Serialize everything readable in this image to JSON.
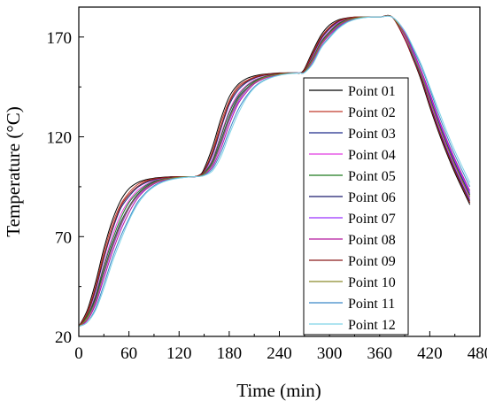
{
  "chart_data": {
    "type": "line",
    "title": "",
    "xlabel": "Time (min)",
    "ylabel": "Temperature (°C)",
    "xlim": [
      0,
      480
    ],
    "ylim": [
      20,
      185
    ],
    "xticks": [
      0,
      60,
      120,
      180,
      240,
      300,
      360,
      420,
      480
    ],
    "yticks": [
      20,
      70,
      120,
      170
    ],
    "grid": false,
    "legend": "inside-right",
    "series": [
      {
        "name": "Point 01",
        "color": "#000000",
        "x": [
          0,
          10,
          20,
          30,
          40,
          50,
          60,
          70,
          80,
          90,
          100,
          110,
          120,
          130,
          138,
          145,
          150,
          160,
          170,
          180,
          190,
          200,
          210,
          220,
          230,
          240,
          250,
          260,
          265,
          270,
          280,
          290,
          300,
          310,
          320,
          330,
          340,
          350,
          360,
          375,
          390,
          400,
          410,
          420,
          430,
          440,
          450,
          460,
          468
        ],
        "y": [
          25,
          33,
          47,
          64,
          78,
          88,
          94,
          97,
          98.5,
          99.3,
          99.7,
          100,
          100,
          100,
          100,
          101,
          104,
          115,
          129,
          140,
          146,
          149,
          150.5,
          151.3,
          151.7,
          152,
          152,
          152,
          152,
          154,
          163,
          171,
          176,
          178.5,
          179.5,
          180,
          180,
          180,
          180,
          180,
          169,
          159,
          148,
          135,
          123,
          112,
          102,
          93,
          86
        ]
      },
      {
        "name": "Point 02",
        "color": "#c0392b",
        "x": [
          0,
          10,
          20,
          30,
          40,
          50,
          60,
          70,
          80,
          90,
          100,
          110,
          120,
          130,
          138,
          145,
          150,
          160,
          170,
          180,
          190,
          200,
          210,
          220,
          230,
          240,
          250,
          260,
          265,
          270,
          280,
          290,
          300,
          310,
          320,
          330,
          340,
          350,
          360,
          375,
          390,
          400,
          410,
          420,
          430,
          440,
          450,
          460,
          468
        ],
        "y": [
          25,
          32,
          45,
          62,
          76,
          86,
          92,
          96,
          98,
          99,
          99.5,
          99.8,
          100,
          100,
          100,
          101,
          103,
          113,
          127,
          138,
          145,
          148,
          150,
          151,
          151.5,
          151.8,
          152,
          152,
          152,
          153.5,
          162,
          170,
          175,
          178,
          179.3,
          180,
          180,
          180,
          180,
          180,
          169,
          159,
          149,
          136,
          124,
          113,
          103,
          94,
          87
        ]
      },
      {
        "name": "Point 03",
        "color": "#1f2a8a",
        "x": [
          0,
          10,
          20,
          30,
          40,
          50,
          60,
          70,
          80,
          90,
          100,
          110,
          120,
          130,
          138,
          145,
          150,
          160,
          170,
          180,
          190,
          200,
          210,
          220,
          230,
          240,
          250,
          260,
          265,
          270,
          280,
          290,
          300,
          310,
          320,
          330,
          340,
          350,
          360,
          375,
          390,
          400,
          410,
          420,
          430,
          440,
          450,
          460,
          468
        ],
        "y": [
          25,
          31,
          43,
          59,
          73,
          84,
          90,
          94.5,
          97,
          98.5,
          99.3,
          99.7,
          100,
          100,
          100,
          100.8,
          102.5,
          111,
          124,
          136,
          143,
          147,
          149.3,
          150.6,
          151.3,
          151.7,
          152,
          152,
          152,
          153,
          161,
          169,
          174,
          177.5,
          179,
          179.7,
          180,
          180,
          180,
          180,
          170,
          160,
          150,
          137,
          125,
          114,
          104,
          95,
          88
        ]
      },
      {
        "name": "Point 04",
        "color": "#e23ae2",
        "x": [
          0,
          10,
          20,
          30,
          40,
          50,
          60,
          70,
          80,
          90,
          100,
          110,
          120,
          130,
          138,
          145,
          150,
          160,
          170,
          180,
          190,
          200,
          210,
          220,
          230,
          240,
          250,
          260,
          265,
          270,
          280,
          290,
          300,
          310,
          320,
          330,
          340,
          350,
          360,
          375,
          390,
          400,
          410,
          420,
          430,
          440,
          450,
          460,
          468
        ],
        "y": [
          25,
          30,
          41,
          56,
          70,
          81,
          88,
          93,
          96,
          98,
          99,
          99.5,
          99.8,
          100,
          100,
          100.6,
          102,
          109,
          121,
          133,
          141,
          145.5,
          148.5,
          150,
          151,
          151.6,
          151.9,
          152,
          152,
          152.7,
          160,
          168,
          173,
          177,
          178.7,
          179.6,
          180,
          180,
          180,
          180,
          170,
          161,
          151,
          138,
          126,
          115,
          105,
          96,
          89
        ]
      },
      {
        "name": "Point 05",
        "color": "#1e7b1e",
        "x": [
          0,
          10,
          20,
          30,
          40,
          50,
          60,
          70,
          80,
          90,
          100,
          110,
          120,
          130,
          138,
          145,
          150,
          160,
          170,
          180,
          190,
          200,
          210,
          220,
          230,
          240,
          250,
          260,
          265,
          270,
          280,
          290,
          300,
          310,
          320,
          330,
          340,
          350,
          360,
          375,
          390,
          400,
          410,
          420,
          430,
          440,
          450,
          460,
          468
        ],
        "y": [
          25,
          30,
          40,
          55,
          68,
          79,
          87,
          92,
          95.5,
          97.7,
          98.8,
          99.4,
          99.8,
          100,
          100,
          100.5,
          101.8,
          108,
          120,
          132,
          140,
          145,
          148,
          149.8,
          150.9,
          151.5,
          151.9,
          152,
          152,
          152.6,
          159.5,
          167.5,
          172.5,
          176.5,
          178.5,
          179.5,
          180,
          180,
          180,
          180,
          171,
          161,
          151,
          139,
          127,
          116,
          106,
          97,
          90
        ]
      },
      {
        "name": "Point 06",
        "color": "#1a1a6e",
        "x": [
          0,
          10,
          20,
          30,
          40,
          50,
          60,
          70,
          80,
          90,
          100,
          110,
          120,
          130,
          138,
          145,
          150,
          160,
          170,
          180,
          190,
          200,
          210,
          220,
          230,
          240,
          250,
          260,
          265,
          270,
          280,
          290,
          300,
          310,
          320,
          330,
          340,
          350,
          360,
          375,
          390,
          400,
          410,
          420,
          430,
          440,
          450,
          460,
          468
        ],
        "y": [
          25,
          29,
          39,
          53,
          66,
          77,
          85,
          91,
          94.8,
          97.3,
          98.6,
          99.3,
          99.7,
          100,
          100,
          100.4,
          101.5,
          107,
          118,
          130,
          139,
          144,
          147.5,
          149.5,
          150.7,
          151.4,
          151.8,
          152,
          152,
          152.5,
          159,
          167,
          172,
          176,
          178.3,
          179.4,
          180,
          180,
          180,
          180,
          171,
          162,
          152,
          140,
          128,
          117,
          107,
          98,
          91
        ]
      },
      {
        "name": "Point 07",
        "color": "#9b30ff",
        "x": [
          0,
          10,
          20,
          30,
          40,
          50,
          60,
          70,
          80,
          90,
          100,
          110,
          120,
          130,
          138,
          145,
          150,
          160,
          170,
          180,
          190,
          200,
          210,
          220,
          230,
          240,
          250,
          260,
          265,
          270,
          280,
          290,
          300,
          310,
          320,
          330,
          340,
          350,
          360,
          375,
          390,
          400,
          410,
          420,
          430,
          440,
          450,
          460,
          468
        ],
        "y": [
          25,
          28,
          37,
          51,
          64,
          75,
          84,
          90,
          94,
          96.8,
          98.3,
          99.1,
          99.6,
          99.9,
          100,
          100.3,
          101.3,
          106,
          116,
          128,
          137,
          143,
          147,
          149.2,
          150.5,
          151.3,
          151.8,
          152,
          152,
          152.4,
          158.5,
          166.5,
          171.5,
          175.5,
          178,
          179.3,
          180,
          180,
          180,
          180,
          172,
          162,
          152,
          141,
          129,
          118,
          108,
          99,
          92
        ]
      },
      {
        "name": "Point 08",
        "color": "#b5179e",
        "x": [
          0,
          10,
          20,
          30,
          40,
          50,
          60,
          70,
          80,
          90,
          100,
          110,
          120,
          130,
          138,
          145,
          150,
          160,
          170,
          180,
          190,
          200,
          210,
          220,
          230,
          240,
          250,
          260,
          265,
          270,
          280,
          290,
          300,
          310,
          320,
          330,
          340,
          350,
          360,
          375,
          390,
          400,
          410,
          420,
          430,
          440,
          450,
          460,
          468
        ],
        "y": [
          25,
          28,
          36,
          49,
          62,
          73,
          82,
          89,
          93.5,
          96.4,
          98,
          99,
          99.5,
          99.9,
          100,
          100.3,
          101.1,
          105,
          114,
          126,
          136,
          142,
          146.5,
          148.9,
          150.3,
          151.2,
          151.7,
          152,
          152,
          152.3,
          158,
          166,
          171,
          175,
          177.8,
          179.2,
          179.8,
          180,
          180,
          180,
          172,
          163,
          153,
          142,
          130,
          119,
          109,
          100,
          93
        ]
      },
      {
        "name": "Point 09",
        "color": "#8b1a1a",
        "x": [
          0,
          10,
          20,
          30,
          40,
          50,
          60,
          70,
          80,
          90,
          100,
          110,
          120,
          130,
          138,
          145,
          150,
          160,
          170,
          180,
          190,
          200,
          210,
          220,
          230,
          240,
          250,
          260,
          265,
          270,
          280,
          290,
          300,
          310,
          320,
          330,
          340,
          350,
          360,
          375,
          390,
          400,
          410,
          420,
          430,
          440,
          450,
          460,
          468
        ],
        "y": [
          25,
          31,
          44,
          60,
          74,
          85,
          91,
          95,
          97.5,
          98.8,
          99.4,
          99.8,
          100,
          100,
          100,
          100.9,
          102.8,
          112,
          125,
          137,
          144,
          147.5,
          149.6,
          150.8,
          151.4,
          151.8,
          152,
          152,
          152,
          153.2,
          161.5,
          169.5,
          174.5,
          177.8,
          179.1,
          179.8,
          180,
          180,
          180,
          180,
          169,
          159,
          149,
          136,
          124,
          113,
          103,
          94,
          87
        ]
      },
      {
        "name": "Point 10",
        "color": "#8a8a2a",
        "x": [
          0,
          10,
          20,
          30,
          40,
          50,
          60,
          70,
          80,
          90,
          100,
          110,
          120,
          130,
          138,
          145,
          150,
          160,
          170,
          180,
          190,
          200,
          210,
          220,
          230,
          240,
          250,
          260,
          265,
          270,
          280,
          290,
          300,
          310,
          320,
          330,
          340,
          350,
          360,
          375,
          390,
          400,
          410,
          420,
          430,
          440,
          450,
          460,
          468
        ],
        "y": [
          25,
          29,
          38,
          52,
          65,
          76,
          84.5,
          90.5,
          94.4,
          97,
          98.5,
          99.2,
          99.7,
          100,
          100,
          100.4,
          101.4,
          106.5,
          117,
          129,
          138,
          143.5,
          147.2,
          149.4,
          150.6,
          151.4,
          151.8,
          152,
          152,
          152.4,
          158.8,
          166.8,
          171.8,
          175.8,
          178.2,
          179.4,
          180,
          180,
          180,
          180,
          171,
          161,
          151,
          139,
          127,
          116,
          106,
          97,
          90
        ]
      },
      {
        "name": "Point 11",
        "color": "#3a86c8",
        "x": [
          0,
          10,
          20,
          30,
          40,
          50,
          60,
          70,
          80,
          90,
          100,
          110,
          120,
          130,
          138,
          145,
          150,
          160,
          170,
          180,
          190,
          200,
          210,
          220,
          230,
          240,
          250,
          260,
          265,
          270,
          280,
          290,
          300,
          310,
          320,
          330,
          340,
          350,
          360,
          375,
          390,
          400,
          410,
          420,
          430,
          440,
          450,
          460,
          468
        ],
        "y": [
          25,
          27,
          34,
          46,
          59,
          70,
          79,
          87,
          92,
          95.5,
          97.5,
          98.7,
          99.4,
          99.8,
          100,
          100.2,
          100.8,
          104,
          112,
          123,
          133,
          140,
          145,
          148,
          149.8,
          150.9,
          151.6,
          151.9,
          152,
          152.2,
          157,
          165,
          170,
          174.5,
          177.3,
          178.9,
          179.7,
          180,
          180,
          180,
          173,
          164,
          155,
          144,
          132,
          121,
          111,
          102,
          95
        ]
      },
      {
        "name": "Point 12",
        "color": "#7fd3e6",
        "x": [
          0,
          10,
          20,
          30,
          40,
          50,
          60,
          70,
          80,
          90,
          100,
          110,
          120,
          130,
          138,
          145,
          150,
          160,
          170,
          180,
          190,
          200,
          210,
          220,
          230,
          240,
          250,
          260,
          265,
          270,
          280,
          290,
          300,
          310,
          320,
          330,
          340,
          350,
          360,
          375,
          390,
          400,
          410,
          420,
          430,
          440,
          450,
          460,
          468
        ],
        "y": [
          25,
          27,
          33,
          44,
          57,
          68,
          78,
          86,
          91.5,
          95,
          97.2,
          98.5,
          99.3,
          99.8,
          100,
          100.2,
          100.6,
          103,
          110,
          121,
          131,
          139,
          144.5,
          147.7,
          149.6,
          150.8,
          151.5,
          151.9,
          152,
          152.1,
          156.5,
          164.5,
          169.5,
          174,
          177,
          178.7,
          179.6,
          180,
          180,
          180,
          173,
          165,
          156,
          145,
          134,
          123,
          113,
          104,
          97
        ]
      }
    ]
  }
}
